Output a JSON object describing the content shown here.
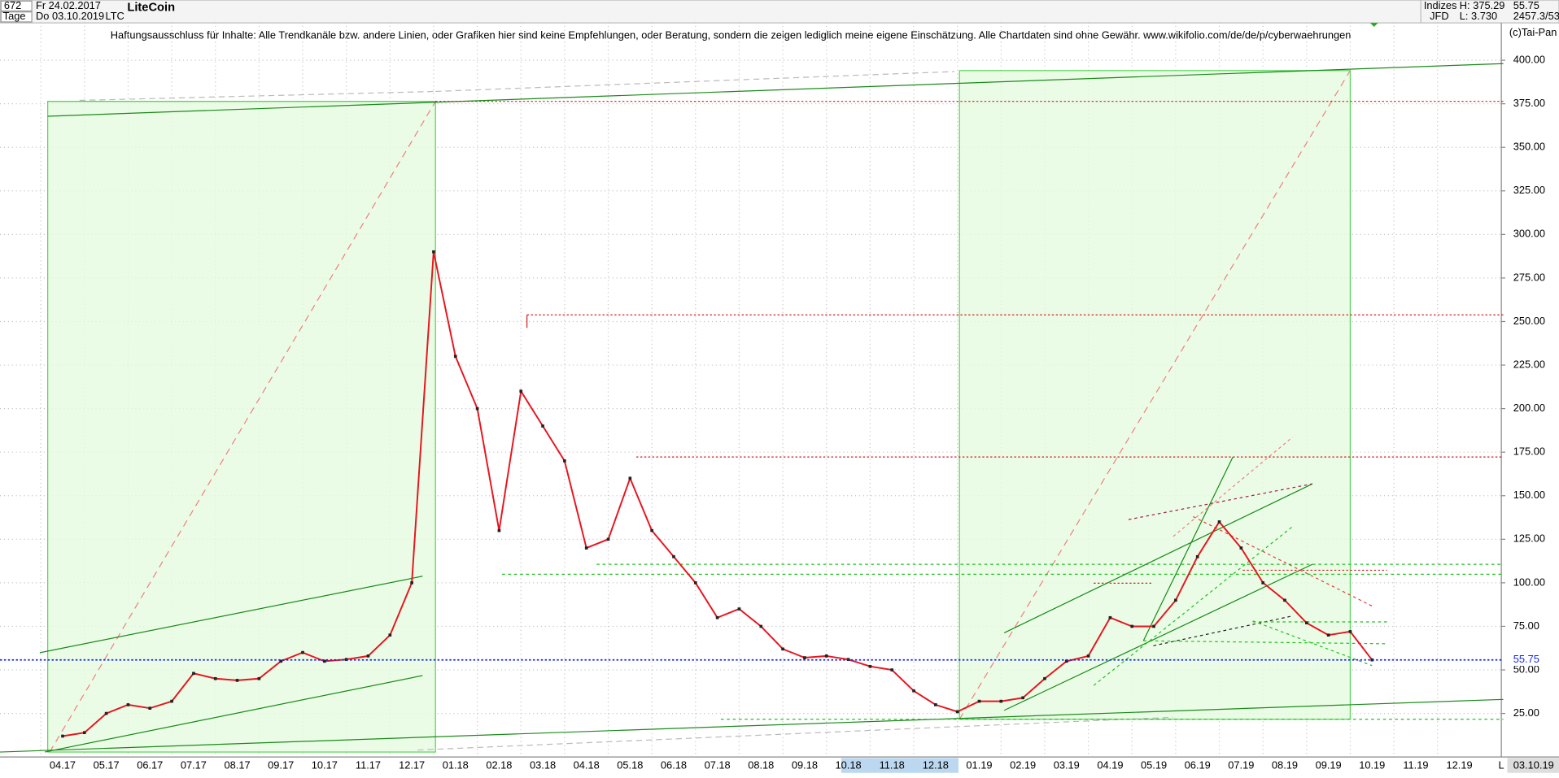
{
  "header": {
    "bars": "672",
    "start_date": "Fr 24.02.2017",
    "period": "Tage",
    "end_date": "Do 03.10.2019",
    "symbol": "LTC",
    "name": "LiteCoin",
    "market": "Indizes",
    "broker": "JFD",
    "high": "H: 375.29",
    "low": "L: 3.730",
    "last": "55.75",
    "info": "2457.3/53",
    "copyright": "(c)Tai-Pan",
    "cursor_date": "03.10.19",
    "scale_mode": "L"
  },
  "chart_data": {
    "type": "line",
    "title": "Haftungsausschluss für Inhalte: Alle Trendkanäle bzw. andere Linien, oder Grafiken hier sind keine Empfehlungen, oder Beratung, sondern die zeigen lediglich meine eigene Einschätzung. Alle Chartdaten sind ohne Gewähr.  www.wikifolio.com/de/de/p/cyberwaehrungen",
    "categories": [
      "04.17",
      null,
      "05.17",
      null,
      "06.17",
      null,
      "07.17",
      null,
      "08.17",
      null,
      "09.17",
      null,
      "10.17",
      null,
      "11.17",
      null,
      "12.17",
      null,
      "01.18",
      null,
      "02.18",
      null,
      "03.18",
      null,
      "04.18",
      null,
      "05.18",
      null,
      "06.18",
      null,
      "07.18",
      null,
      "08.18",
      null,
      "09.18",
      null,
      "10.18",
      null,
      "11.18",
      null,
      "12.18",
      null,
      "01.19",
      null,
      "02.19",
      null,
      "03.19",
      null,
      "04.19",
      null,
      "05.19",
      null,
      "06.19",
      null,
      "07.19",
      null,
      "08.19",
      null,
      "09.19",
      null,
      "10.19",
      null,
      "11.19",
      null,
      "12.19"
    ],
    "values": [
      12,
      14,
      25,
      30,
      28,
      32,
      48,
      45,
      44,
      45,
      55,
      60,
      55,
      56,
      58,
      70,
      100,
      290,
      230,
      200,
      130,
      210,
      190,
      170,
      120,
      125,
      160,
      130,
      115,
      100,
      80,
      85,
      75,
      62,
      57,
      58,
      56,
      52,
      50,
      38,
      30,
      26,
      32,
      32,
      34,
      45,
      55,
      58,
      80,
      75,
      75,
      90,
      115,
      135,
      120,
      100,
      90,
      77,
      70,
      72,
      55.75,
      null,
      null,
      null,
      null
    ],
    "color": "#e8141e",
    "ylim": [
      0,
      422
    ],
    "yticks": [
      {
        "value": 25,
        "label": "25.00"
      },
      {
        "value": 50,
        "label": "50.00"
      },
      {
        "value": 75,
        "label": "75.00"
      },
      {
        "value": 100,
        "label": "100.00"
      },
      {
        "value": 125,
        "label": "125.00"
      },
      {
        "value": 150,
        "label": "150.00"
      },
      {
        "value": 175,
        "label": "175.00"
      },
      {
        "value": 200,
        "label": "200.00"
      },
      {
        "value": 225,
        "label": "225.00"
      },
      {
        "value": 250,
        "label": "250.00"
      },
      {
        "value": 275,
        "label": "275.00"
      },
      {
        "value": 300,
        "label": "300.00"
      },
      {
        "value": 325,
        "label": "325.00"
      },
      {
        "value": 350,
        "label": "350.00"
      },
      {
        "value": 375,
        "label": "375.00"
      },
      {
        "value": 400,
        "label": "400.00"
      }
    ],
    "grid": true
  }
}
